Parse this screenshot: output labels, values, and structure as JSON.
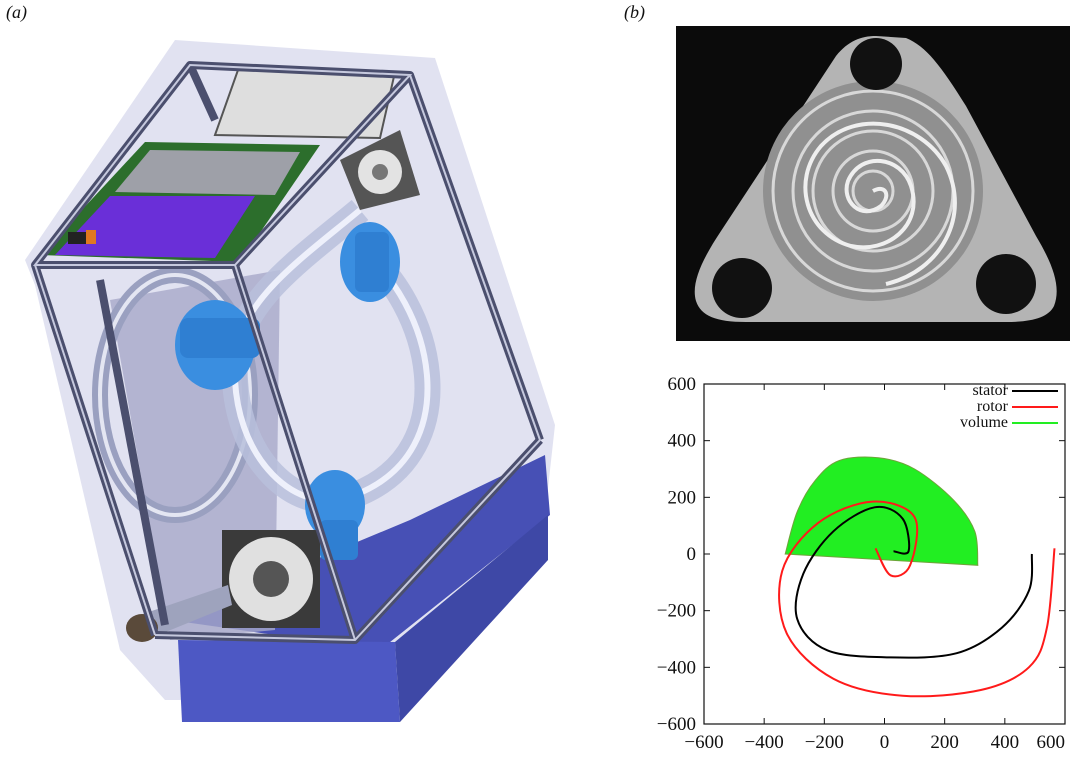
{
  "figure": {
    "panel_a_label": "(a)",
    "panel_b_label": "(b)"
  },
  "panel_a": {
    "image": "cad-render-of-scroll-device-in-aluminium-frame-with-fans-and-blue-base"
  },
  "panel_b_photo": {
    "image": "photo-of-machined-triangular-aluminium-scroll-plate-with-three-bolt-holes"
  },
  "colors": {
    "stator": "#000000",
    "rotor": "#ff1a1a",
    "volume": "#22ee22",
    "base_blue": "#4a55bb",
    "part_blue": "#3a8ee0"
  },
  "chart_data": {
    "type": "line",
    "title": "",
    "xlabel": "",
    "ylabel": "",
    "xlim": [
      -600,
      600
    ],
    "ylim": [
      -600,
      600
    ],
    "xticks": [
      -600,
      -400,
      -200,
      0,
      200,
      400,
      600
    ],
    "yticks": [
      -600,
      -400,
      -200,
      0,
      200,
      400,
      600
    ],
    "xtick_labels": [
      "−600",
      "−400",
      "−200",
      "0",
      "200",
      "400",
      "600"
    ],
    "ytick_labels": [
      "−600",
      "−400",
      "−200",
      "0",
      "200",
      "400",
      "600"
    ],
    "grid": false,
    "legend_position": "top-right",
    "series": [
      {
        "name": "stator",
        "color": "#000000",
        "x": [
          30,
          80,
          60,
          -33,
          -170,
          -270,
          -290,
          -190,
          20,
          240,
          390,
          480,
          490
        ],
        "y": [
          10,
          10,
          125,
          165,
          80,
          -70,
          -230,
          -340,
          -365,
          -350,
          -260,
          -130,
          0
        ]
      },
      {
        "name": "rotor",
        "color": "#ff1a1a",
        "x": [
          -30,
          20,
          85,
          100,
          -40,
          -220,
          -340,
          -325,
          -170,
          60,
          320,
          480,
          540,
          565
        ],
        "y": [
          20,
          -75,
          -40,
          130,
          185,
          110,
          -60,
          -280,
          -440,
          -500,
          -480,
          -400,
          -260,
          20
        ]
      },
      {
        "name": "volume",
        "color": "#22ee22",
        "type": "area",
        "x": [
          -330,
          -290,
          -230,
          -150,
          -20,
          100,
          230,
          300,
          310
        ],
        "y": [
          0,
          150,
          260,
          330,
          340,
          300,
          190,
          80,
          -40
        ]
      }
    ]
  }
}
